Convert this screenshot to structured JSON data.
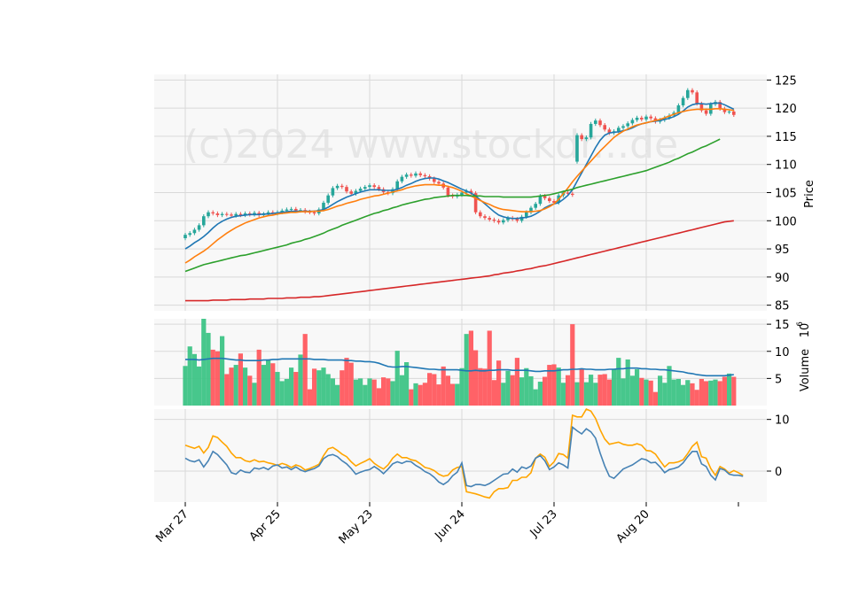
{
  "watermark": "(c)2024 www.stockdr...de",
  "chart_data": {
    "type": "candlestick",
    "price_panel": {
      "ylabel": "Price",
      "yticks": [
        85,
        90,
        95,
        100,
        105,
        110,
        115,
        120,
        125
      ],
      "ylim": [
        84,
        126
      ],
      "start_close": 97.5,
      "up_color": "#26a69a",
      "down_color": "#ef5350",
      "sma_series": [
        {
          "name": "",
          "color": "#1f77b4",
          "key": "sma10"
        },
        {
          "name": "",
          "color": "#ff7f0e",
          "key": "sma20"
        },
        {
          "name": "",
          "color": "#2ca02c",
          "key": "sma50"
        },
        {
          "name": "",
          "color": "#d62728",
          "key": "sma200"
        }
      ]
    },
    "volume_panel": {
      "ylabel": "Volume",
      "yexp": "10",
      "yexp_power": "6",
      "yticks": [
        5,
        10,
        15
      ],
      "ylim": [
        0,
        16
      ],
      "avg_color": "#1f77b4"
    },
    "oscillator_panel": {
      "yticks": [
        0,
        10
      ],
      "ylim": [
        -6,
        12
      ],
      "series": [
        {
          "name": "",
          "color": "#4682b4"
        },
        {
          "name": "",
          "color": "#ffa500"
        }
      ]
    },
    "x_tick_labels": [
      "Mar 27",
      "Apr 25",
      "May 23",
      "Jun 24",
      "Jul 23",
      "Aug 20"
    ],
    "x_tick_index": [
      0,
      20,
      40,
      60,
      80,
      100
    ],
    "n_days": 120,
    "close": [
      97.5,
      97.8,
      98.4,
      99.2,
      100.8,
      101.5,
      101.3,
      101.0,
      101.2,
      101.1,
      100.9,
      101.2,
      101.0,
      101.3,
      101.1,
      101.4,
      101.0,
      101.2,
      101.5,
      101.3,
      101.5,
      101.8,
      102.0,
      102.1,
      101.8,
      101.9,
      101.6,
      101.5,
      101.3,
      102.0,
      103.2,
      104.5,
      105.8,
      106.2,
      106.0,
      105.2,
      104.8,
      105.3,
      105.7,
      106.0,
      106.3,
      106.0,
      105.6,
      105.1,
      104.9,
      105.6,
      107.0,
      107.8,
      108.2,
      108.0,
      108.4,
      108.1,
      107.9,
      107.5,
      106.9,
      106.6,
      105.9,
      104.5,
      104.3,
      104.6,
      105.0,
      105.3,
      104.9,
      101.5,
      100.8,
      100.5,
      100.2,
      100.0,
      99.7,
      100.1,
      100.5,
      100.3,
      100.0,
      100.7,
      101.5,
      102.3,
      103.0,
      104.4,
      104.0,
      103.5,
      103.2,
      104.5,
      105.0,
      104.8,
      104.6,
      115.2,
      114.5,
      114.8,
      117.2,
      117.8,
      117.0,
      116.2,
      115.6,
      115.9,
      116.5,
      116.8,
      117.3,
      117.9,
      118.3,
      118.0,
      118.5,
      118.2,
      117.6,
      117.9,
      118.3,
      118.7,
      119.2,
      120.5,
      121.8,
      123.2,
      122.8,
      120.8,
      119.6,
      119.0,
      120.7,
      121.1,
      119.9,
      119.3,
      119.4,
      118.8
    ],
    "open": [
      96.9,
      97.5,
      97.8,
      98.4,
      99.2,
      100.8,
      101.5,
      101.3,
      101.0,
      101.2,
      101.1,
      100.9,
      101.2,
      101.0,
      101.3,
      101.1,
      101.4,
      101.0,
      101.2,
      101.5,
      101.3,
      101.5,
      101.8,
      102.0,
      102.1,
      101.8,
      101.9,
      101.6,
      101.5,
      101.3,
      102.0,
      103.2,
      104.5,
      105.8,
      106.2,
      106.0,
      105.2,
      104.8,
      105.3,
      105.7,
      106.0,
      106.3,
      106.0,
      105.6,
      105.1,
      104.9,
      105.6,
      107.0,
      107.8,
      108.2,
      108.0,
      108.4,
      108.1,
      107.9,
      107.5,
      106.9,
      106.6,
      105.9,
      104.5,
      104.3,
      104.6,
      105.0,
      105.3,
      104.9,
      101.5,
      100.8,
      100.5,
      100.2,
      100.0,
      99.7,
      100.1,
      100.5,
      100.3,
      100.0,
      100.7,
      101.5,
      102.3,
      103.0,
      104.4,
      104.0,
      103.5,
      103.2,
      104.5,
      105.0,
      104.8,
      110.5,
      115.2,
      114.5,
      114.8,
      117.2,
      117.8,
      117.0,
      116.2,
      115.6,
      115.9,
      116.5,
      116.8,
      117.3,
      117.9,
      118.3,
      118.0,
      118.5,
      118.2,
      117.6,
      117.9,
      118.3,
      118.7,
      119.2,
      120.5,
      121.8,
      123.2,
      122.8,
      120.8,
      119.6,
      119.0,
      120.7,
      121.1,
      119.9,
      119.3,
      119.4
    ],
    "sma10": [
      95.0,
      95.5,
      96.1,
      96.6,
      97.2,
      97.9,
      98.7,
      99.4,
      99.9,
      100.3,
      100.6,
      100.8,
      100.9,
      101.0,
      101.1,
      101.1,
      101.1,
      101.2,
      101.2,
      101.3,
      101.4,
      101.5,
      101.6,
      101.7,
      101.7,
      101.7,
      101.7,
      101.7,
      101.7,
      101.8,
      102.0,
      102.4,
      102.9,
      103.4,
      103.8,
      104.2,
      104.5,
      104.8,
      105.1,
      105.3,
      105.5,
      105.5,
      105.5,
      105.4,
      105.4,
      105.4,
      105.6,
      105.9,
      106.3,
      106.6,
      107.0,
      107.3,
      107.5,
      107.6,
      107.6,
      107.4,
      107.1,
      106.8,
      106.4,
      106.0,
      105.6,
      105.3,
      104.9,
      104.4,
      103.7,
      103.0,
      102.3,
      101.6,
      101.0,
      100.7,
      100.5,
      100.4,
      100.4,
      100.5,
      100.6,
      100.8,
      101.2,
      101.7,
      102.3,
      102.7,
      103.0,
      103.2,
      103.8,
      104.5,
      105.5,
      107.0,
      108.5,
      110.0,
      111.5,
      113.0,
      114.3,
      115.2,
      115.6,
      115.7,
      115.8,
      116.0,
      116.2,
      116.5,
      116.9,
      117.2,
      117.4,
      117.6,
      117.7,
      117.8,
      118.0,
      118.2,
      118.5,
      118.9,
      119.5,
      120.2,
      120.6,
      120.8,
      120.8,
      120.7,
      120.8,
      120.9,
      120.9,
      120.6,
      120.2,
      119.8
    ],
    "sma20": [
      92.5,
      93.0,
      93.6,
      94.1,
      94.6,
      95.2,
      95.9,
      96.6,
      97.2,
      97.8,
      98.3,
      98.8,
      99.2,
      99.6,
      99.9,
      100.2,
      100.5,
      100.7,
      100.9,
      101.0,
      101.2,
      101.3,
      101.4,
      101.5,
      101.5,
      101.6,
      101.6,
      101.6,
      101.7,
      101.7,
      101.8,
      102.0,
      102.3,
      102.6,
      102.8,
      103.1,
      103.3,
      103.5,
      103.8,
      104.0,
      104.2,
      104.4,
      104.5,
      104.7,
      104.9,
      105.1,
      105.3,
      105.5,
      105.8,
      106.0,
      106.2,
      106.3,
      106.4,
      106.4,
      106.4,
      106.3,
      106.3,
      106.1,
      105.9,
      105.6,
      105.2,
      104.8,
      104.4,
      104.0,
      103.6,
      103.2,
      102.9,
      102.5,
      102.2,
      102.0,
      101.9,
      101.8,
      101.7,
      101.6,
      101.6,
      101.6,
      101.7,
      101.8,
      102.1,
      102.5,
      103.0,
      103.8,
      104.8,
      105.8,
      106.9,
      107.9,
      108.8,
      109.7,
      110.6,
      111.5,
      112.4,
      113.2,
      114.0,
      114.8,
      115.4,
      115.9,
      116.3,
      116.7,
      117.0,
      117.2,
      117.4,
      117.6,
      117.8,
      118.0,
      118.3,
      118.6,
      118.9,
      119.2,
      119.4,
      119.6,
      119.7,
      119.8,
      119.8,
      119.8,
      119.8,
      119.9,
      119.9,
      119.8,
      119.7,
      119.6
    ],
    "sma50": [
      91.0,
      91.3,
      91.6,
      91.9,
      92.2,
      92.4,
      92.6,
      92.8,
      93.0,
      93.2,
      93.4,
      93.6,
      93.8,
      93.9,
      94.1,
      94.3,
      94.5,
      94.7,
      94.9,
      95.1,
      95.3,
      95.5,
      95.7,
      96.0,
      96.2,
      96.4,
      96.7,
      96.9,
      97.2,
      97.5,
      97.8,
      98.2,
      98.5,
      98.8,
      99.2,
      99.5,
      99.8,
      100.1,
      100.4,
      100.7,
      101.0,
      101.3,
      101.5,
      101.8,
      102.0,
      102.3,
      102.5,
      102.8,
      103.0,
      103.2,
      103.4,
      103.6,
      103.8,
      103.9,
      104.1,
      104.2,
      104.3,
      104.4,
      104.5,
      104.5,
      104.5,
      104.5,
      104.4,
      104.4,
      104.4,
      104.3,
      104.3,
      104.3,
      104.3,
      104.2,
      104.2,
      104.2,
      104.2,
      104.2,
      104.2,
      104.2,
      104.3,
      104.4,
      104.5,
      104.6,
      104.8,
      105.0,
      105.2,
      105.4,
      105.6,
      105.9,
      106.1,
      106.3,
      106.5,
      106.7,
      106.9,
      107.1,
      107.3,
      107.5,
      107.7,
      107.9,
      108.1,
      108.3,
      108.5,
      108.7,
      108.9,
      109.2,
      109.5,
      109.8,
      110.1,
      110.4,
      110.8,
      111.1,
      111.5,
      111.9,
      112.2,
      112.6,
      113.0,
      113.3,
      113.7,
      114.1,
      114.5
    ],
    "sma200": [
      85.8,
      85.8,
      85.8,
      85.8,
      85.8,
      85.8,
      85.9,
      85.9,
      85.9,
      85.9,
      86.0,
      86.0,
      86.0,
      86.0,
      86.1,
      86.1,
      86.1,
      86.1,
      86.2,
      86.2,
      86.2,
      86.2,
      86.3,
      86.3,
      86.3,
      86.4,
      86.4,
      86.4,
      86.5,
      86.5,
      86.6,
      86.7,
      86.8,
      86.9,
      87.0,
      87.1,
      87.2,
      87.3,
      87.4,
      87.5,
      87.6,
      87.7,
      87.8,
      87.9,
      88.0,
      88.1,
      88.2,
      88.3,
      88.4,
      88.5,
      88.6,
      88.7,
      88.8,
      88.9,
      89.0,
      89.1,
      89.2,
      89.3,
      89.4,
      89.5,
      89.6,
      89.7,
      89.8,
      89.9,
      90.0,
      90.1,
      90.2,
      90.4,
      90.5,
      90.7,
      90.8,
      90.9,
      91.1,
      91.2,
      91.4,
      91.5,
      91.7,
      91.9,
      92.0,
      92.2,
      92.4,
      92.6,
      92.8,
      93.0,
      93.2,
      93.4,
      93.6,
      93.8,
      94.0,
      94.2,
      94.4,
      94.6,
      94.8,
      95.0,
      95.2,
      95.4,
      95.6,
      95.8,
      96.0,
      96.2,
      96.4,
      96.6,
      96.8,
      97.0,
      97.2,
      97.4,
      97.6,
      97.8,
      98.0,
      98.2,
      98.4,
      98.6,
      98.8,
      99.0,
      99.2,
      99.4,
      99.6,
      99.8,
      99.9,
      100.0
    ],
    "volume": [
      7.3,
      10.9,
      9.5,
      7.2,
      16.0,
      13.4,
      10.3,
      10.0,
      12.8,
      5.8,
      7.0,
      7.5,
      9.6,
      7.0,
      5.5,
      4.2,
      10.3,
      7.5,
      8.5,
      7.8,
      6.2,
      4.5,
      4.9,
      7.0,
      6.2,
      9.4,
      13.2,
      3.0,
      6.8,
      6.5,
      7.0,
      5.8,
      5.0,
      3.8,
      6.5,
      8.8,
      7.9,
      4.8,
      5.0,
      3.8,
      5.0,
      4.8,
      3.2,
      5.2,
      5.0,
      4.5,
      10.1,
      5.6,
      8.0,
      3.0,
      4.1,
      3.8,
      4.2,
      6.0,
      5.8,
      3.9,
      7.2,
      5.5,
      4.0,
      4.0,
      6.9,
      13.2,
      13.8,
      10.2,
      6.9,
      6.8,
      13.8,
      4.7,
      8.3,
      4.2,
      6.4,
      5.6,
      8.8,
      5.2,
      6.9,
      5.4,
      3.0,
      4.4,
      5.3,
      7.5,
      7.6,
      7.0,
      4.2,
      5.6,
      15.0,
      4.3,
      6.7,
      4.3,
      5.7,
      4.2,
      5.7,
      5.8,
      4.8,
      6.7,
      8.8,
      5.0,
      8.5,
      5.5,
      6.7,
      5.1,
      4.8,
      4.6,
      2.5,
      5.5,
      4.2,
      7.3,
      4.8,
      4.9,
      3.8,
      4.7,
      4.1,
      2.9,
      4.9,
      4.5,
      4.6,
      4.8,
      4.5,
      5.3,
      5.9,
      5.3
    ],
    "volume_avg": [
      8.5,
      8.5,
      8.5,
      8.4,
      8.5,
      8.6,
      8.7,
      8.7,
      8.7,
      8.6,
      8.5,
      8.4,
      8.4,
      8.3,
      8.3,
      8.3,
      8.3,
      8.4,
      8.4,
      8.5,
      8.5,
      8.6,
      8.6,
      8.6,
      8.6,
      8.6,
      8.6,
      8.6,
      8.5,
      8.5,
      8.5,
      8.4,
      8.4,
      8.4,
      8.4,
      8.3,
      8.3,
      8.2,
      8.2,
      8.1,
      8.1,
      8.0,
      7.8,
      7.5,
      7.2,
      7.1,
      7.1,
      7.2,
      7.2,
      7.1,
      7.0,
      6.9,
      6.8,
      6.7,
      6.7,
      6.6,
      6.6,
      6.6,
      6.6,
      6.6,
      6.5,
      6.4,
      6.4,
      6.5,
      6.4,
      6.4,
      6.5,
      6.5,
      6.6,
      6.6,
      6.6,
      6.5,
      6.5,
      6.5,
      6.5,
      6.4,
      6.3,
      6.3,
      6.4,
      6.4,
      6.4,
      6.5,
      6.6,
      6.6,
      6.7,
      6.7,
      6.8,
      6.7,
      6.7,
      6.6,
      6.6,
      6.6,
      6.7,
      6.7,
      6.8,
      6.8,
      6.9,
      6.9,
      6.9,
      6.8,
      6.8,
      6.7,
      6.7,
      6.6,
      6.6,
      6.5,
      6.4,
      6.3,
      6.2,
      6.0,
      5.9,
      5.7,
      5.6,
      5.5,
      5.5,
      5.5,
      5.5,
      5.5,
      5.6,
      5.7
    ],
    "osc_blue": [
      2.5,
      2.0,
      1.8,
      2.2,
      0.8,
      2.0,
      3.8,
      3.2,
      2.2,
      1.2,
      -0.3,
      -0.6,
      0.2,
      -0.2,
      -0.3,
      0.6,
      0.4,
      0.7,
      0.3,
      1.0,
      1.2,
      0.6,
      0.8,
      0.3,
      0.8,
      0.2,
      -0.1,
      0.2,
      0.5,
      1.0,
      2.4,
      3.0,
      3.2,
      2.8,
      2.0,
      1.4,
      0.5,
      -0.6,
      -0.2,
      0.1,
      0.3,
      0.9,
      0.3,
      -0.5,
      0.4,
      1.4,
      1.8,
      1.5,
      1.9,
      1.8,
      1.1,
      0.6,
      -0.1,
      -0.5,
      -1.2,
      -2.1,
      -2.6,
      -2.0,
      -0.9,
      -0.2,
      1.6,
      -2.8,
      -3.0,
      -2.6,
      -2.6,
      -2.8,
      -2.4,
      -1.8,
      -1.2,
      -0.6,
      -0.5,
      0.4,
      -0.2,
      0.8,
      0.5,
      1.0,
      2.5,
      3.0,
      2.0,
      0.3,
      0.8,
      1.6,
      1.2,
      0.6,
      8.5,
      7.8,
      7.2,
      8.2,
      7.6,
      6.4,
      3.5,
      1.0,
      -1.0,
      -1.4,
      -0.5,
      0.4,
      0.8,
      1.2,
      1.8,
      2.4,
      2.2,
      1.6,
      1.7,
      0.8,
      -0.3,
      0.3,
      0.5,
      0.8,
      1.6,
      2.8,
      3.8,
      3.8,
      1.4,
      0.9,
      -0.8,
      -1.7,
      0.5,
      0.2,
      -0.6,
      -0.8,
      -0.8,
      -1.0
    ],
    "osc_orange": [
      5.0,
      4.7,
      4.4,
      4.8,
      3.5,
      4.6,
      6.8,
      6.5,
      5.6,
      4.8,
      3.5,
      2.6,
      2.6,
      2.0,
      1.8,
      2.2,
      1.8,
      1.9,
      1.6,
      1.4,
      1.1,
      1.5,
      1.2,
      0.7,
      1.2,
      0.9,
      0.2,
      0.5,
      0.9,
      1.3,
      3.0,
      4.3,
      4.6,
      4.0,
      3.3,
      2.8,
      1.8,
      1.0,
      1.5,
      1.9,
      2.4,
      1.5,
      0.9,
      0.4,
      1.2,
      2.5,
      3.3,
      2.6,
      2.6,
      2.2,
      2.0,
      1.4,
      0.7,
      0.5,
      0.1,
      -0.6,
      -1.0,
      -0.8,
      0.2,
      0.7,
      0.9,
      -4.0,
      -4.2,
      -4.4,
      -4.7,
      -5.0,
      -5.2,
      -4.0,
      -3.4,
      -3.4,
      -3.2,
      -1.8,
      -1.8,
      -1.2,
      -1.2,
      -0.3,
      2.5,
      3.3,
      2.7,
      0.9,
      1.8,
      3.4,
      3.2,
      2.5,
      10.8,
      10.5,
      10.5,
      12.0,
      11.6,
      10.2,
      8.0,
      6.2,
      5.2,
      5.4,
      5.6,
      5.2,
      5.0,
      5.0,
      5.3,
      5.0,
      4.0,
      3.9,
      3.3,
      2.0,
      0.8,
      1.6,
      1.6,
      1.8,
      2.2,
      3.4,
      4.8,
      5.6,
      2.8,
      2.5,
      0.5,
      -0.8,
      0.9,
      0.4,
      -0.4,
      0.1,
      -0.3,
      -0.8
    ]
  }
}
